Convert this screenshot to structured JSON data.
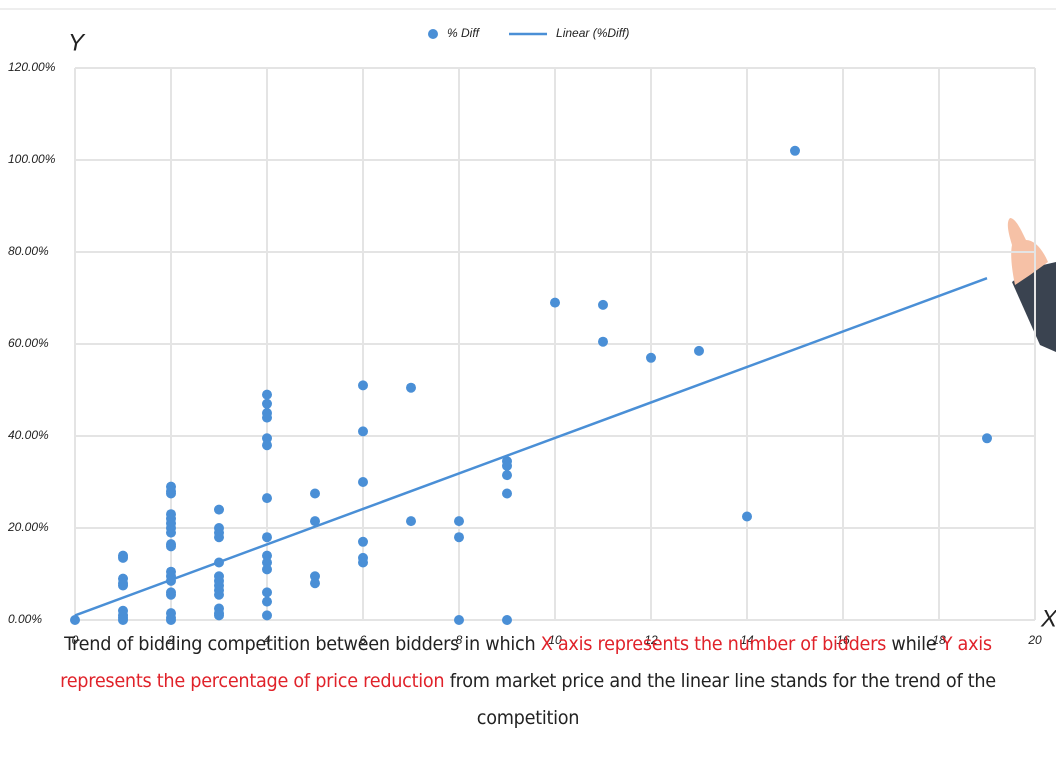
{
  "chart_data": {
    "type": "scatter",
    "y_axis_title": "Y",
    "x_axis_title": "X",
    "xlim": [
      0,
      20
    ],
    "xticks": [
      0,
      2,
      4,
      6,
      8,
      10,
      12,
      14,
      16,
      18,
      20
    ],
    "ylim": [
      0,
      120
    ],
    "yticks": [
      {
        "value": 0,
        "label": "0.00%"
      },
      {
        "value": 20,
        "label": "20.00%"
      },
      {
        "value": 40,
        "label": "40.00%"
      },
      {
        "value": 60,
        "label": "60.00%"
      },
      {
        "value": 80,
        "label": "80.00%"
      },
      {
        "value": 100,
        "label": "100.00%"
      },
      {
        "value": 120,
        "label": "120.00%"
      }
    ],
    "grid": true,
    "series": [
      {
        "name": "% Diff",
        "type": "scatter",
        "color": "#4a8fd6",
        "x": [
          0,
          1,
          1,
          1,
          1,
          1,
          1,
          1,
          1,
          1,
          2,
          2,
          2,
          2,
          2,
          2,
          2,
          2,
          2,
          2,
          2,
          2,
          2,
          2,
          2,
          2,
          2,
          2,
          3,
          3,
          3,
          3,
          3,
          3,
          3,
          3,
          3,
          3,
          3,
          3,
          3,
          4,
          4,
          4,
          4,
          4,
          4,
          4,
          4,
          4,
          4,
          4,
          4,
          4,
          4,
          5,
          5,
          5,
          5,
          6,
          6,
          6,
          6,
          6,
          6,
          7,
          7,
          8,
          8,
          8,
          9,
          9,
          9,
          9,
          9,
          10,
          11,
          11,
          12,
          13,
          14,
          15,
          19
        ],
        "values": [
          0,
          14,
          13.5,
          9,
          8,
          7.5,
          2,
          1,
          0.5,
          0,
          29,
          28,
          27.5,
          23,
          22,
          21,
          20,
          19,
          16.5,
          16,
          10.5,
          9.5,
          8.5,
          6,
          5.5,
          1.5,
          0.5,
          0,
          24,
          20,
          19,
          18,
          12.5,
          9.5,
          8.5,
          7.5,
          6.5,
          5.5,
          2.5,
          1.5,
          1,
          49,
          47,
          45,
          44,
          39.5,
          38,
          26.5,
          18,
          14,
          12.5,
          11,
          6,
          4,
          1,
          27.5,
          21.5,
          9.5,
          8,
          51,
          41,
          30,
          17,
          13.5,
          12.5,
          50.5,
          21.5,
          21.5,
          18,
          0,
          34.5,
          33.5,
          31.5,
          27.5,
          0,
          69,
          68.5,
          60.5,
          57,
          58.5,
          22.5,
          102,
          39.5
        ]
      },
      {
        "name": "Linear (%Diff)",
        "type": "line",
        "color": "#4a8fd6",
        "x": [
          0,
          19
        ],
        "values": [
          1,
          74.3
        ]
      }
    ]
  },
  "caption": [
    {
      "text": "Trend of bidding competition between bidders in which ",
      "color": "#222222"
    },
    {
      "text": "X axis represents the number of bidders",
      "color": "#e0222a"
    },
    {
      "text": " while ",
      "color": "#222222"
    },
    {
      "text": "Y axis represents the percentage of price reduction",
      "color": "#e0222a"
    },
    {
      "text": " from market price and the linear line stands for the trend of the competition",
      "color": "#222222"
    }
  ]
}
